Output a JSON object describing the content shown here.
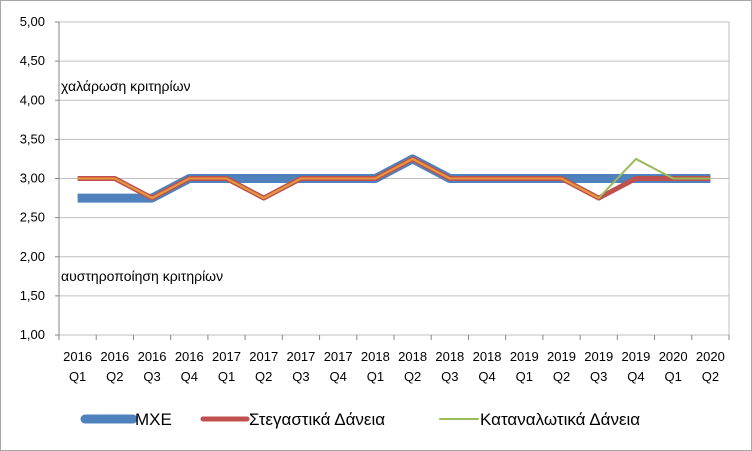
{
  "chart_data": {
    "type": "line",
    "categories_year": [
      "2016",
      "2016",
      "2016",
      "2016",
      "2017",
      "2017",
      "2017",
      "2017",
      "2018",
      "2018",
      "2018",
      "2018",
      "2019",
      "2019",
      "2019",
      "2019",
      "2020",
      "2020"
    ],
    "categories_quarter": [
      "Q1",
      "Q2",
      "Q3",
      "Q4",
      "Q1",
      "Q2",
      "Q3",
      "Q4",
      "Q1",
      "Q2",
      "Q3",
      "Q4",
      "Q1",
      "Q2",
      "Q3",
      "Q4",
      "Q1",
      "Q2"
    ],
    "ylim": [
      1.0,
      5.0
    ],
    "yticks": [
      "1,00",
      "1,50",
      "2,00",
      "2,50",
      "3,00",
      "3,50",
      "4,00",
      "4,50",
      "5,00"
    ],
    "grid": true,
    "legend_position": "bottom",
    "annotations": {
      "upper": "χαλάρωση κριτηρίων",
      "lower": "αυστηροποίηση κριτηρίων"
    },
    "series": [
      {
        "name": "ΜΧΕ",
        "color": "#4f81bd",
        "values": [
          2.75,
          2.75,
          2.75,
          3.0,
          3.0,
          3.0,
          3.0,
          3.0,
          3.0,
          3.25,
          3.0,
          3.0,
          3.0,
          3.0,
          3.0,
          3.0,
          3.0,
          3.0
        ]
      },
      {
        "name": "Στεγαστικά Δάνεια",
        "color": "#c0504d",
        "values": [
          3.0,
          3.0,
          2.75,
          3.0,
          3.0,
          2.75,
          3.0,
          3.0,
          3.0,
          3.25,
          3.0,
          3.0,
          3.0,
          3.0,
          2.75,
          3.0,
          3.0,
          3.0
        ]
      },
      {
        "name": "Καταναλωτικά Δάνεια",
        "color": "#9bbb59",
        "values": [
          3.0,
          3.0,
          2.75,
          3.0,
          3.0,
          2.75,
          3.0,
          3.0,
          3.0,
          3.25,
          3.0,
          3.0,
          3.0,
          3.0,
          2.75,
          3.25,
          3.0,
          3.0
        ]
      }
    ],
    "overlay_color": "#e8953c"
  }
}
